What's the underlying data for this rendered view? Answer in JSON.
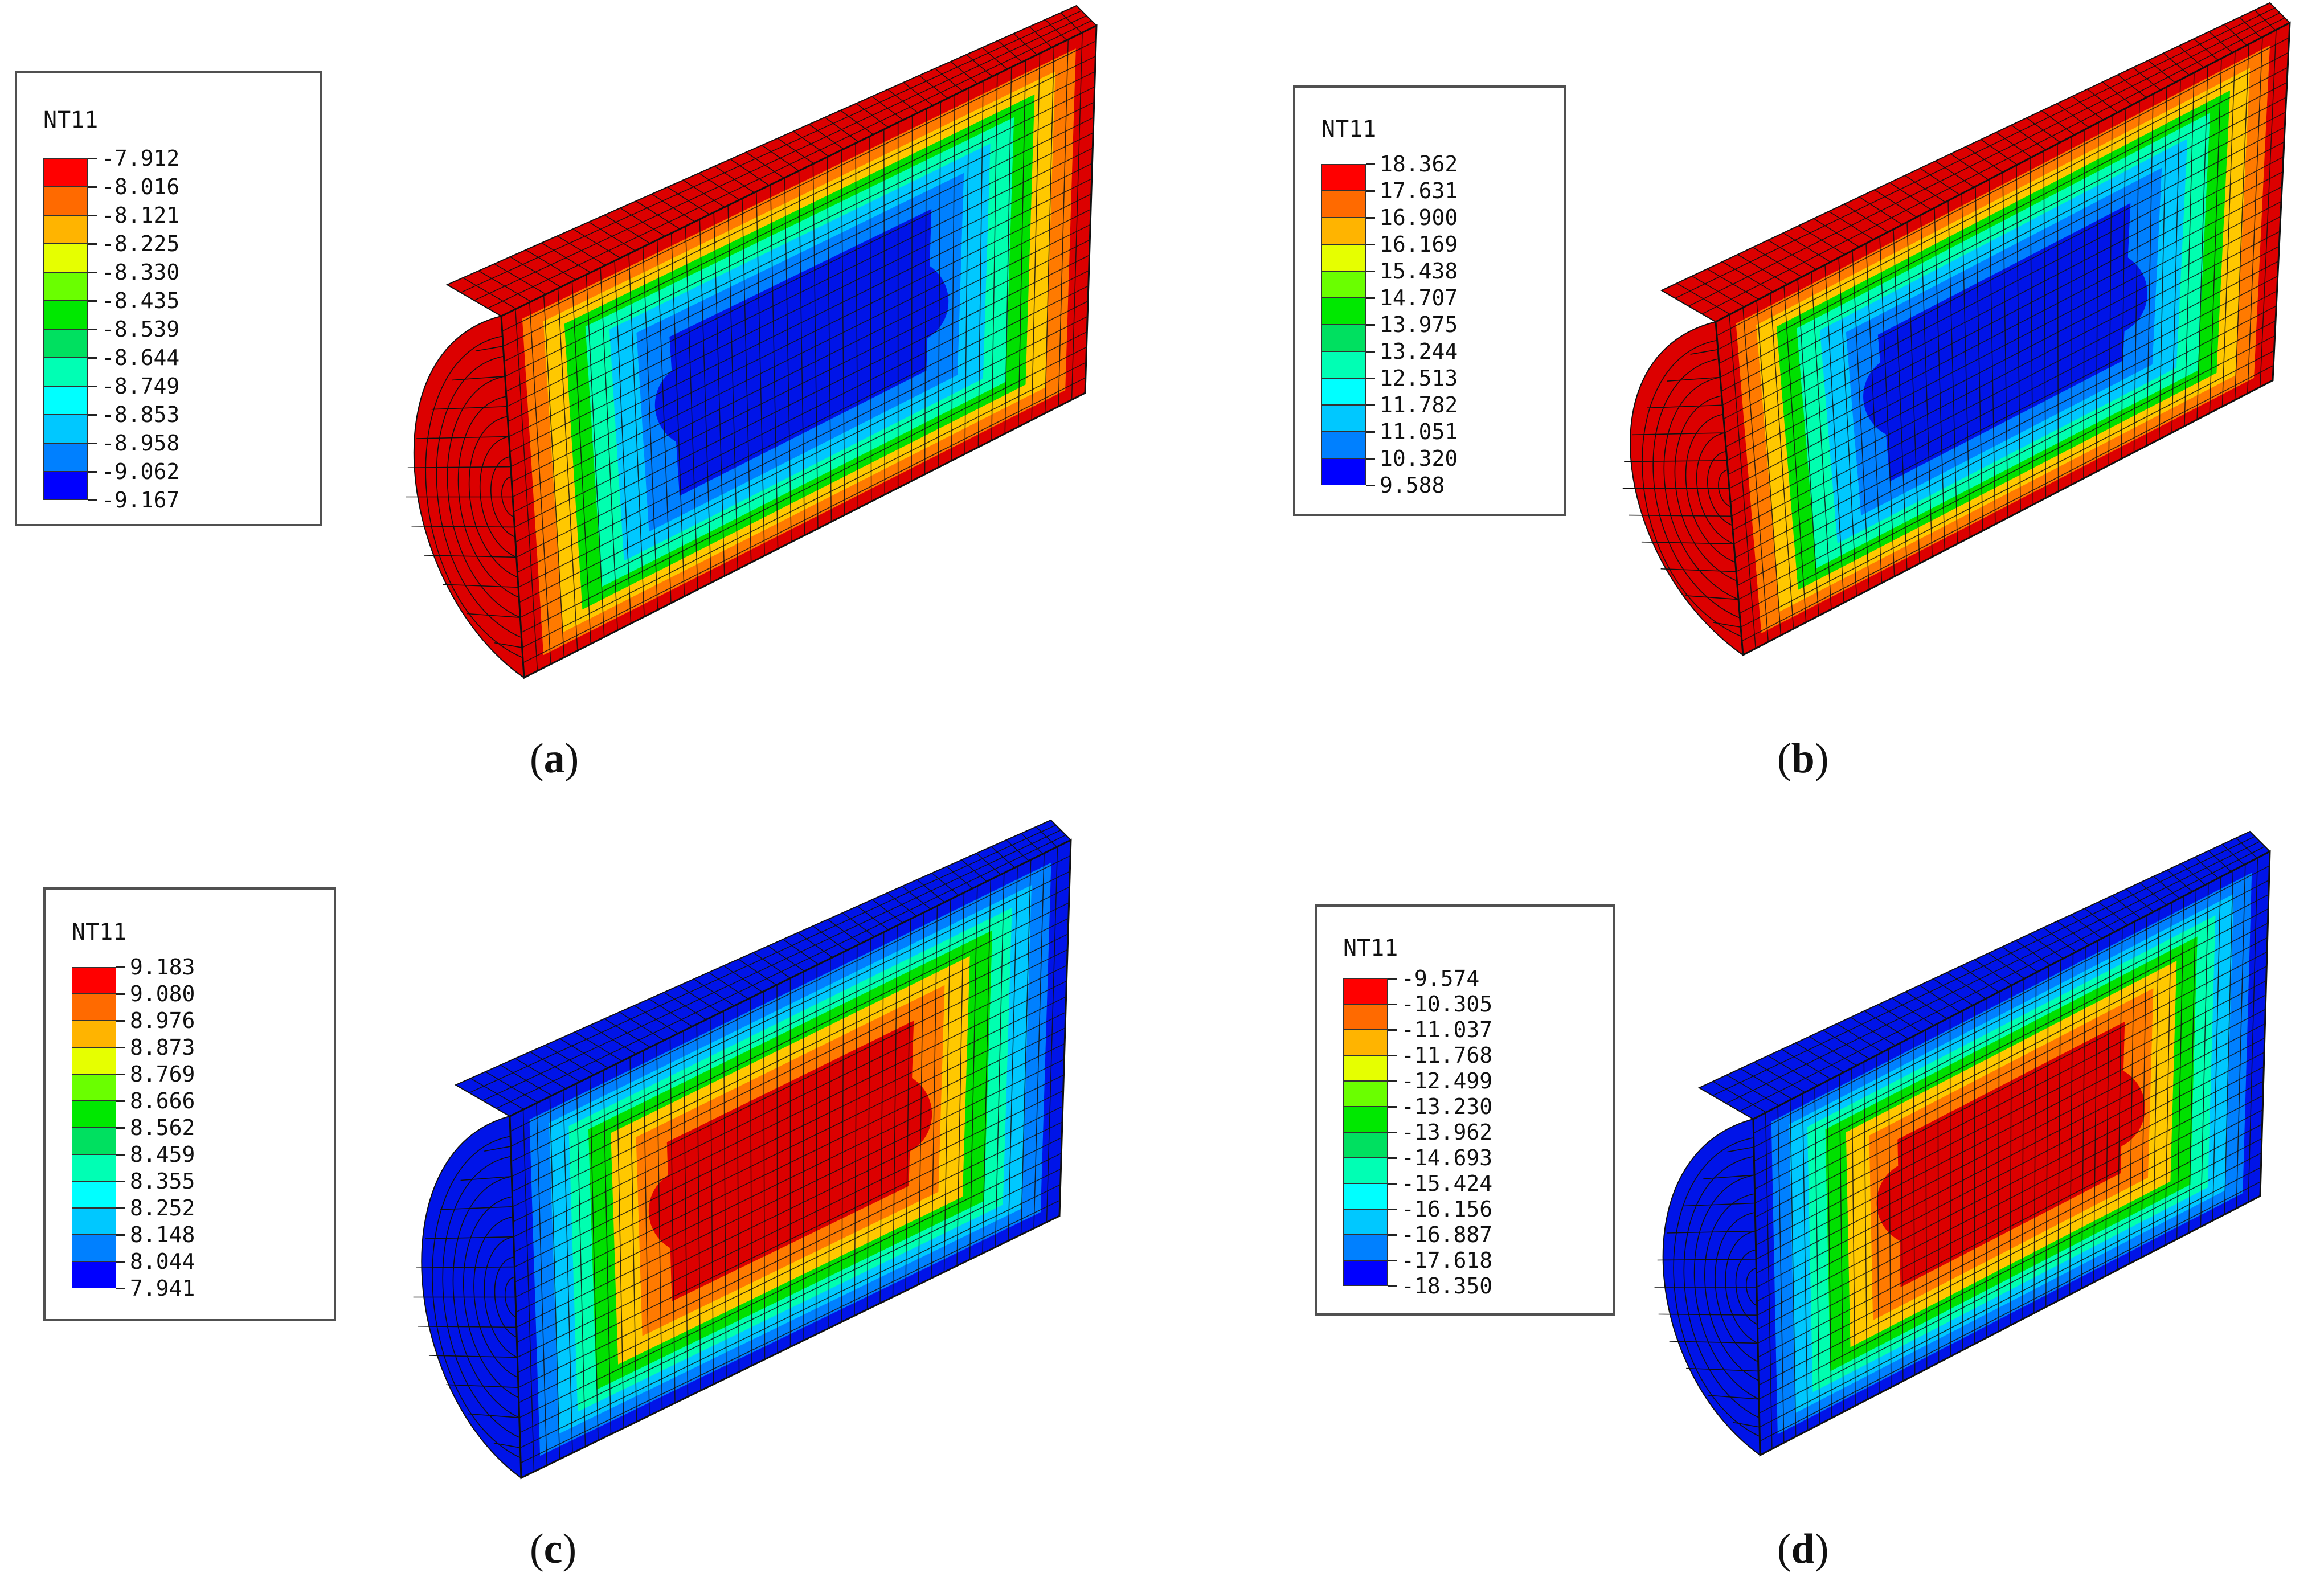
{
  "colors": {
    "hot": "#dc0000",
    "hot_inner": "#ff2a00",
    "orange": "#ff7a00",
    "yellow": "#ffc800",
    "lime": "#a8ff00",
    "green": "#00e000",
    "teal": "#00ffb0",
    "cyan": "#00c8ff",
    "light_blue": "#0080ff",
    "blue": "#0014e8",
    "mesh": "#111111"
  },
  "legend_colors": [
    "#ff0000",
    "#ff6a00",
    "#ffb400",
    "#e6ff00",
    "#6aff00",
    "#00e800",
    "#00e060",
    "#00ffb4",
    "#00ffff",
    "#00c8ff",
    "#0080ff",
    "#0000ff"
  ],
  "panels": [
    {
      "label": "a",
      "legend_title": "NT11",
      "legend_values": [
        "-7.912",
        "-8.016",
        "-8.121",
        "-8.225",
        "-8.330",
        "-8.435",
        "-8.539",
        "-8.644",
        "-8.749",
        "-8.853",
        "-8.958",
        "-9.062",
        "-9.167"
      ],
      "outer_color": "hot",
      "inner_color": "blue"
    },
    {
      "label": "b",
      "legend_title": "NT11",
      "legend_values": [
        "18.362",
        "17.631",
        "16.900",
        "16.169",
        "15.438",
        "14.707",
        "13.975",
        "13.244",
        "12.513",
        "11.782",
        "11.051",
        "10.320",
        "9.588"
      ],
      "outer_color": "hot",
      "inner_color": "blue"
    },
    {
      "label": "c",
      "legend_title": "NT11",
      "legend_values": [
        "9.183",
        "9.080",
        "8.976",
        "8.873",
        "8.769",
        "8.666",
        "8.562",
        "8.459",
        "8.355",
        "8.252",
        "8.148",
        "8.044",
        "7.941"
      ],
      "outer_color": "blue",
      "inner_color": "hot"
    },
    {
      "label": "d",
      "legend_title": "NT11",
      "legend_values": [
        "-9.574",
        "-10.305",
        "-11.037",
        "-11.768",
        "-12.499",
        "-13.230",
        "-13.962",
        "-14.693",
        "-15.424",
        "-16.156",
        "-16.887",
        "-17.618",
        "-18.350"
      ],
      "outer_color": "blue",
      "inner_color": "hot"
    }
  ]
}
